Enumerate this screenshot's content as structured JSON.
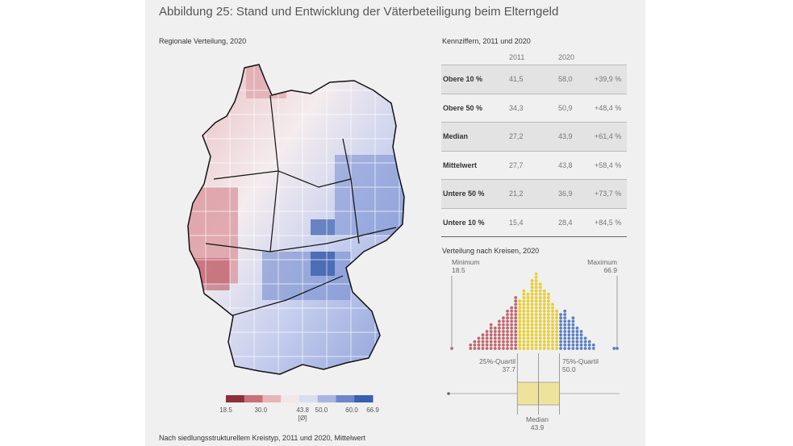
{
  "title": "Abbildung 25: Stand und Entwicklung der Väterbeteiligung beim Elterngeld",
  "map": {
    "subtitle": "Regionale Verteilung, 2020",
    "legend": {
      "ticks": [
        "18.5",
        "30.0",
        "43.8",
        "50.0",
        "60.0",
        "66.9"
      ],
      "avg_note": "[Ø]",
      "colors": [
        "#8c2f3a",
        "#c96f78",
        "#e8b4b8",
        "#f2e7e8",
        "#d9def0",
        "#a7b6e0",
        "#6d86cc",
        "#3a5fae"
      ]
    }
  },
  "table": {
    "subtitle": "Kennziffern, 2011 und 2020",
    "columns": [
      "2011",
      "2020"
    ],
    "rows": [
      {
        "label": "Obere 10 %",
        "v2011": "41,5",
        "v2020": "58,0",
        "change": "+39,9 %"
      },
      {
        "label": "Obere 50 %",
        "v2011": "34,3",
        "v2020": "50,9",
        "change": "+48,4 %"
      },
      {
        "label": "Median",
        "v2011": "27,2",
        "v2020": "43,9",
        "change": "+61,4 %"
      },
      {
        "label": "Mittelwert",
        "v2011": "27,7",
        "v2020": "43,8",
        "change": "+58,4 %"
      },
      {
        "label": "Untere 50 %",
        "v2011": "21,2",
        "v2020": "36,9",
        "change": "+73,7 %"
      },
      {
        "label": "Untere 10 %",
        "v2011": "15,4",
        "v2020": "28,4",
        "change": "+84,5 %"
      }
    ]
  },
  "distribution": {
    "subtitle": "Verteilung nach Kreisen, 2020",
    "min_label": "Minimum",
    "min_value": "18.5",
    "max_label": "Maximum",
    "max_value": "66.9",
    "q1_label": "25%-Quartil",
    "q1_value": "37.7",
    "q3_label": "75%-Quartil",
    "q3_value": "50.0",
    "median_label": "Median",
    "median_value": "43.9",
    "colors": {
      "low": "#c0676f",
      "mid": "#e8cf2c",
      "high": "#5b7fc4",
      "box": "#efe29c"
    }
  },
  "chart_data": {
    "type": "dot histogram",
    "title": "Verteilung nach Kreisen, 2020",
    "xlim": [
      18.5,
      66.9
    ],
    "min": 18.5,
    "q1": 37.7,
    "median": 43.9,
    "q3": 50.0,
    "max": 66.9,
    "bins": [
      {
        "x": 18.5,
        "n": 1
      },
      {
        "x": 24.0,
        "n": 2
      },
      {
        "x": 25.2,
        "n": 3
      },
      {
        "x": 26.4,
        "n": 4
      },
      {
        "x": 27.6,
        "n": 5
      },
      {
        "x": 28.8,
        "n": 6
      },
      {
        "x": 30.0,
        "n": 8
      },
      {
        "x": 31.2,
        "n": 7
      },
      {
        "x": 32.4,
        "n": 9
      },
      {
        "x": 33.6,
        "n": 10
      },
      {
        "x": 34.8,
        "n": 12
      },
      {
        "x": 36.0,
        "n": 13
      },
      {
        "x": 37.2,
        "n": 16
      },
      {
        "x": 38.4,
        "n": 15
      },
      {
        "x": 39.6,
        "n": 18
      },
      {
        "x": 40.8,
        "n": 17
      },
      {
        "x": 42.0,
        "n": 21
      },
      {
        "x": 43.2,
        "n": 23
      },
      {
        "x": 44.4,
        "n": 20
      },
      {
        "x": 45.6,
        "n": 18
      },
      {
        "x": 46.8,
        "n": 17
      },
      {
        "x": 48.0,
        "n": 14
      },
      {
        "x": 49.2,
        "n": 12
      },
      {
        "x": 50.4,
        "n": 11
      },
      {
        "x": 51.6,
        "n": 12
      },
      {
        "x": 52.8,
        "n": 9
      },
      {
        "x": 54.0,
        "n": 10
      },
      {
        "x": 55.2,
        "n": 7
      },
      {
        "x": 56.4,
        "n": 6
      },
      {
        "x": 57.6,
        "n": 4
      },
      {
        "x": 58.8,
        "n": 3
      },
      {
        "x": 60.0,
        "n": 2
      },
      {
        "x": 66.0,
        "n": 1
      },
      {
        "x": 66.9,
        "n": 1
      }
    ]
  },
  "bottom_subtitle": "Nach siedlungsstrukturellem Kreistyp, 2011 und 2020, Mittelwert"
}
